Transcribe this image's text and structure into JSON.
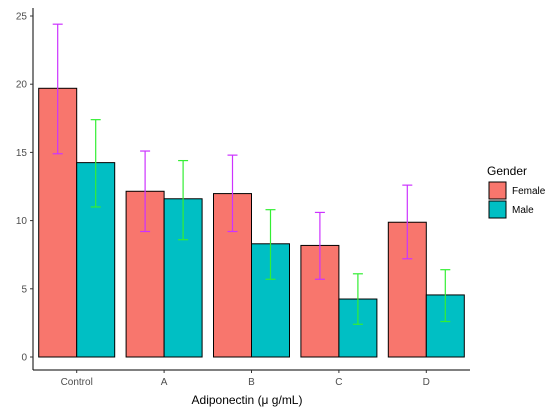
{
  "chart_data": {
    "type": "bar",
    "categories": [
      "Control",
      "A",
      "B",
      "C",
      "D"
    ],
    "series": [
      {
        "name": "Female",
        "color": "#F8766D",
        "values": [
          19.7,
          12.15,
          11.98,
          8.18,
          9.88
        ],
        "error_low": [
          14.9,
          9.2,
          9.2,
          5.7,
          7.2
        ],
        "error_high": [
          24.4,
          15.1,
          14.8,
          10.6,
          12.6
        ],
        "error_color": "#CC33FF"
      },
      {
        "name": "Male",
        "color": "#00BFC4",
        "values": [
          14.25,
          11.6,
          8.3,
          4.25,
          4.55
        ],
        "error_low": [
          11.0,
          8.6,
          5.7,
          2.4,
          2.6
        ],
        "error_high": [
          17.4,
          14.4,
          10.8,
          6.1,
          6.4
        ],
        "error_color": "#33EE33"
      }
    ],
    "xlabel": "Adiponectin (μ g/mL)",
    "ylabel": "",
    "ylim": [
      0,
      25
    ],
    "yticks": [
      0,
      5,
      10,
      15,
      20,
      25
    ],
    "grid": false,
    "legend": {
      "title": "Gender",
      "placement": "right"
    }
  }
}
